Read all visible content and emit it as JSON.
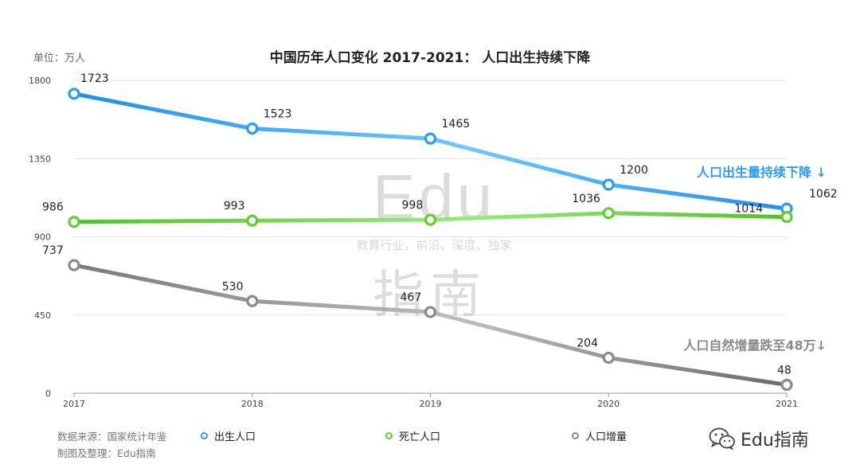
{
  "unit_label": "单位：万人",
  "source": {
    "line1": "数据来源：国家统计年鉴",
    "line2": "制图及整理：Edu指南"
  },
  "brand": "Edu指南",
  "watermark": {
    "big": "Edu",
    "slogan": "教育行业，前沿、深度、独家",
    "cn": "指南"
  },
  "colors": {
    "births": "#2b9bf4",
    "deaths": "#5ccf2c",
    "growth": "#8a8a8a"
  },
  "chart_data": {
    "type": "line",
    "title": "中国历年人口变化 2017-2021： 人口出生持续下降",
    "x": [
      "2017",
      "2018",
      "2019",
      "2020",
      "2021"
    ],
    "ylim": [
      0,
      1800
    ],
    "yticks": [
      0,
      450,
      900,
      1350,
      1800
    ],
    "grid": true,
    "legend_position": "bottom",
    "series": [
      {
        "key": "births",
        "name": "出生人口",
        "values": [
          1723,
          1523,
          1465,
          1200,
          1062
        ],
        "labels": [
          "1723",
          "1523",
          "1465",
          "1200",
          "1062"
        ]
      },
      {
        "key": "deaths",
        "name": "死亡人口",
        "values": [
          986,
          993,
          998,
          1036,
          1014
        ],
        "labels": [
          "986",
          "993",
          "998",
          "1036",
          "1014"
        ]
      },
      {
        "key": "growth",
        "name": "人口增量",
        "values": [
          737,
          530,
          467,
          204,
          48
        ],
        "labels": [
          "737",
          "530",
          "467",
          "204",
          "48"
        ]
      }
    ],
    "annotations": [
      {
        "series": "births",
        "text": "人口出生量持续下降 ↓"
      },
      {
        "series": "growth",
        "text": "人口自然增量跌至48万↓"
      }
    ]
  }
}
